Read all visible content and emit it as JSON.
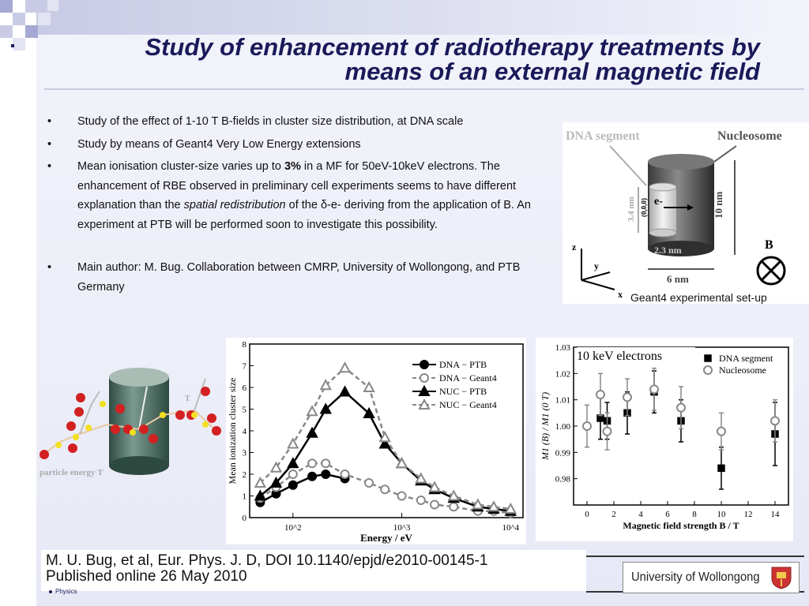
{
  "title": {
    "line1": "Study of enhancement of radiotherapy treatments by",
    "line2": "means of an external magnetic field"
  },
  "bullets": [
    {
      "text": "Study of the effect of 1-10 T B-fields in cluster size distribution, at DNA scale"
    },
    {
      "text": "Study by means of Geant4 Very Low Energy extensions"
    },
    {
      "pre": "Mean ionisation cluster-size varies up to ",
      "bold": "3%",
      "mid": " in a MF for 50eV-10keV electrons. The enhancement of RBE observed in preliminary cell experiments seems to have different explanation than the ",
      "italic": "spatial redistribution",
      "post": " of the δ-e- deriving from the application of B. An experiment  at PTB will be performed soon to investigate this possibility."
    },
    {
      "text": "Main author: M. Bug. Collaboration between CMRP, University of Wollongong, and PTB Germany"
    }
  ],
  "setup_figure": {
    "dna_segment": "DNA segment",
    "nucleosome": "Nucleosome",
    "electron": "e-",
    "origin": "(0,0,0)",
    "dim_height_small": "3.4 nm",
    "dim_height_large": "10 nm",
    "dim_width_small": "2.3 nm",
    "dim_width_large": "6 nm",
    "field": "B",
    "axis_z": "z",
    "axis_y": "y",
    "axis_x": "x",
    "caption": "Geant4 experimental set-up"
  },
  "track_figure": {
    "label_energy": "particle energy T",
    "label_t": "T"
  },
  "chart_data": [
    {
      "type": "line",
      "xlabel": "Energy / eV",
      "ylabel": "Mean ionization cluster size",
      "xscale": "log",
      "xlim": [
        40,
        13000
      ],
      "ylim": [
        0,
        8
      ],
      "yticks": [
        "0",
        "1",
        "2",
        "3",
        "4",
        "5",
        "6",
        "7",
        "8"
      ],
      "xticks": [
        "10^2",
        "10^3",
        "10^4"
      ],
      "legend_position": "top-right",
      "series": [
        {
          "name": "DNA − PTB",
          "marker": "filled-circle",
          "line": "solid",
          "x": [
            50,
            70,
            100,
            150,
            200,
            300
          ],
          "y": [
            0.7,
            1.1,
            1.5,
            1.9,
            2.0,
            1.8
          ]
        },
        {
          "name": "DNA − Geant4",
          "marker": "open-circle",
          "line": "dashed",
          "x": [
            50,
            70,
            100,
            150,
            200,
            300,
            500,
            700,
            1000,
            1500,
            2000,
            3000,
            5000,
            7000,
            10000
          ],
          "y": [
            0.9,
            1.4,
            2.0,
            2.5,
            2.5,
            2.0,
            1.6,
            1.3,
            1.0,
            0.8,
            0.6,
            0.5,
            0.3,
            0.3,
            0.2
          ]
        },
        {
          "name": "NUC − PTB",
          "marker": "filled-triangle",
          "line": "solid",
          "x": [
            50,
            70,
            100,
            150,
            200,
            300,
            500,
            700,
            1000,
            1500,
            2000,
            3000,
            5000,
            7000,
            10000
          ],
          "y": [
            1.0,
            1.6,
            2.5,
            3.9,
            5.0,
            5.8,
            4.8,
            3.4,
            2.5,
            1.7,
            1.3,
            0.9,
            0.5,
            0.4,
            0.3
          ]
        },
        {
          "name": "NUC − Geant4",
          "marker": "open-triangle",
          "line": "dashed",
          "x": [
            50,
            70,
            100,
            150,
            200,
            300,
            500,
            700,
            1000,
            1500,
            2000,
            3000,
            5000,
            7000,
            10000
          ],
          "y": [
            1.6,
            2.3,
            3.4,
            4.9,
            6.1,
            6.9,
            6.0,
            3.7,
            2.5,
            1.8,
            1.4,
            1.0,
            0.6,
            0.5,
            0.4
          ]
        }
      ]
    },
    {
      "type": "scatter",
      "title": "10 keV electrons",
      "xlabel": "Magnetic field strength B / T",
      "ylabel": "M1 (B) / M1 (0 T)",
      "xlim": [
        -1,
        15
      ],
      "ylim": [
        0.97,
        1.03
      ],
      "xticks": [
        "0",
        "2",
        "4",
        "6",
        "8",
        "10",
        "12",
        "14"
      ],
      "yticks": [
        "0.98",
        "0.99",
        "1.00",
        "1.01",
        "1.02",
        "1.03"
      ],
      "legend_position": "top-right",
      "series": [
        {
          "name": "DNA segment",
          "marker": "filled-square",
          "x": [
            1,
            1.5,
            3,
            5,
            7,
            10,
            14
          ],
          "y": [
            1.003,
            1.002,
            1.005,
            1.013,
            1.002,
            0.984,
            0.997
          ],
          "err": [
            0.008,
            0.007,
            0.008,
            0.008,
            0.008,
            0.008,
            0.012
          ]
        },
        {
          "name": "Nucleosome",
          "marker": "open-circle",
          "x": [
            0,
            1,
            1.5,
            3,
            5,
            7,
            10,
            14
          ],
          "y": [
            1.0,
            1.012,
            0.998,
            1.011,
            1.014,
            1.007,
            0.998,
            1.002
          ],
          "err": [
            0.008,
            0.008,
            0.007,
            0.007,
            0.008,
            0.008,
            0.007,
            0.008
          ]
        }
      ]
    }
  ],
  "reference": {
    "line1": "M. U. Bug, et al, Eur. Phys. J. D, DOI 10.1140/epjd/e2010-00145-1",
    "line2": "Published online 26 May 2010"
  },
  "footer": {
    "university": "University of Wollongong",
    "physics": "Physics"
  },
  "colors": {
    "title": "#1a1a5a",
    "accent_square": "#a6a9d4",
    "cylinder": "#3e5c52"
  }
}
